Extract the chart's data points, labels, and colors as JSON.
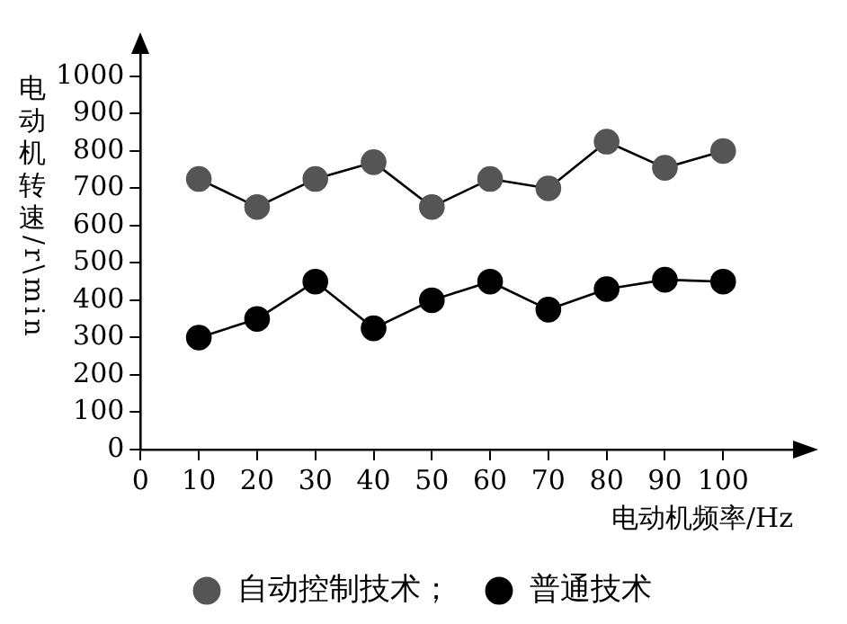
{
  "chart_data": {
    "type": "line",
    "xlabel": "电动机频率/Hz",
    "ylabel": "电动机转速/r\\min",
    "x": [
      10,
      20,
      30,
      40,
      50,
      60,
      70,
      80,
      90,
      100
    ],
    "series": [
      {
        "name": "自动控制技术；",
        "color": "#555555",
        "values": [
          725,
          650,
          725,
          770,
          650,
          725,
          700,
          825,
          755,
          800
        ]
      },
      {
        "name": "普通技术",
        "color": "#000000",
        "values": [
          300,
          350,
          450,
          325,
          400,
          450,
          375,
          430,
          455,
          450
        ]
      }
    ],
    "xlim": [
      0,
      112
    ],
    "xticks": [
      0,
      10,
      20,
      30,
      40,
      50,
      60,
      70,
      80,
      90,
      100
    ],
    "ylim": [
      0,
      1060
    ],
    "yticks": [
      0,
      100,
      200,
      300,
      400,
      500,
      600,
      700,
      800,
      900,
      1000
    ],
    "grid": false,
    "legend": "bottom",
    "marker": "circle",
    "line_style": "solid"
  }
}
